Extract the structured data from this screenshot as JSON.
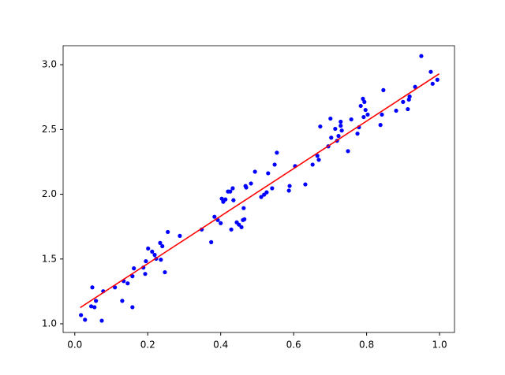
{
  "chart_data": {
    "type": "scatter",
    "x": [
      0.017,
      0.028,
      0.048,
      0.045,
      0.054,
      0.058,
      0.074,
      0.078,
      0.11,
      0.13,
      0.134,
      0.145,
      0.158,
      0.158,
      0.162,
      0.188,
      0.193,
      0.195,
      0.201,
      0.212,
      0.219,
      0.223,
      0.234,
      0.236,
      0.24,
      0.247,
      0.255,
      0.288,
      0.348,
      0.374,
      0.383,
      0.392,
      0.4,
      0.403,
      0.407,
      0.413,
      0.42,
      0.426,
      0.429,
      0.433,
      0.435,
      0.444,
      0.45,
      0.457,
      0.461,
      0.463,
      0.465,
      0.468,
      0.47,
      0.483,
      0.494,
      0.511,
      0.519,
      0.526,
      0.53,
      0.541,
      0.548,
      0.554,
      0.587,
      0.589,
      0.604,
      0.632,
      0.652,
      0.665,
      0.669,
      0.673,
      0.695,
      0.701,
      0.703,
      0.714,
      0.719,
      0.723,
      0.729,
      0.729,
      0.732,
      0.749,
      0.758,
      0.775,
      0.779,
      0.784,
      0.79,
      0.792,
      0.794,
      0.797,
      0.803,
      0.838,
      0.842,
      0.846,
      0.881,
      0.9,
      0.913,
      0.916,
      0.918,
      0.933,
      0.95,
      0.976,
      0.981,
      0.994
    ],
    "values": [
      1.067,
      1.031,
      1.281,
      1.135,
      1.128,
      1.177,
      1.024,
      1.251,
      1.281,
      1.177,
      1.33,
      1.312,
      1.128,
      1.367,
      1.428,
      1.434,
      1.385,
      1.483,
      1.581,
      1.557,
      1.532,
      1.502,
      1.624,
      1.495,
      1.599,
      1.398,
      1.709,
      1.679,
      1.728,
      1.63,
      1.826,
      1.801,
      1.777,
      1.966,
      1.942,
      1.96,
      2.021,
      2.021,
      1.728,
      2.046,
      1.954,
      1.783,
      1.765,
      1.746,
      1.801,
      1.893,
      1.807,
      2.064,
      2.052,
      2.083,
      2.174,
      1.979,
      1.997,
      2.015,
      2.162,
      2.046,
      2.229,
      2.321,
      2.028,
      2.064,
      2.217,
      2.076,
      2.229,
      2.297,
      2.266,
      2.523,
      2.37,
      2.584,
      2.437,
      2.505,
      2.413,
      2.45,
      2.56,
      2.529,
      2.492,
      2.333,
      2.578,
      2.468,
      2.517,
      2.682,
      2.737,
      2.596,
      2.713,
      2.651,
      2.615,
      2.535,
      2.615,
      2.804,
      2.645,
      2.713,
      2.657,
      2.731,
      2.755,
      2.829,
      3.067,
      2.945,
      2.853,
      2.884
    ],
    "color": "#0000ff",
    "fit": {
      "x": [
        0.015,
        0.999
      ],
      "values": [
        1.125,
        2.93
      ],
      "color": "#ff0000"
    },
    "xlim": [
      -0.032,
      1.041
    ],
    "ylim": [
      0.933,
      3.147
    ],
    "xticks": [
      {
        "value": 0,
        "label": "0.0"
      },
      0.2,
      0.4,
      0.6,
      0.8,
      {
        "value": 1,
        "label": "1.0"
      }
    ],
    "yticks": [
      {
        "value": 1,
        "label": "1.0"
      },
      1.5,
      {
        "value": 2,
        "label": "2.0"
      },
      2.5,
      {
        "value": 3,
        "label": "3.0"
      }
    ]
  }
}
